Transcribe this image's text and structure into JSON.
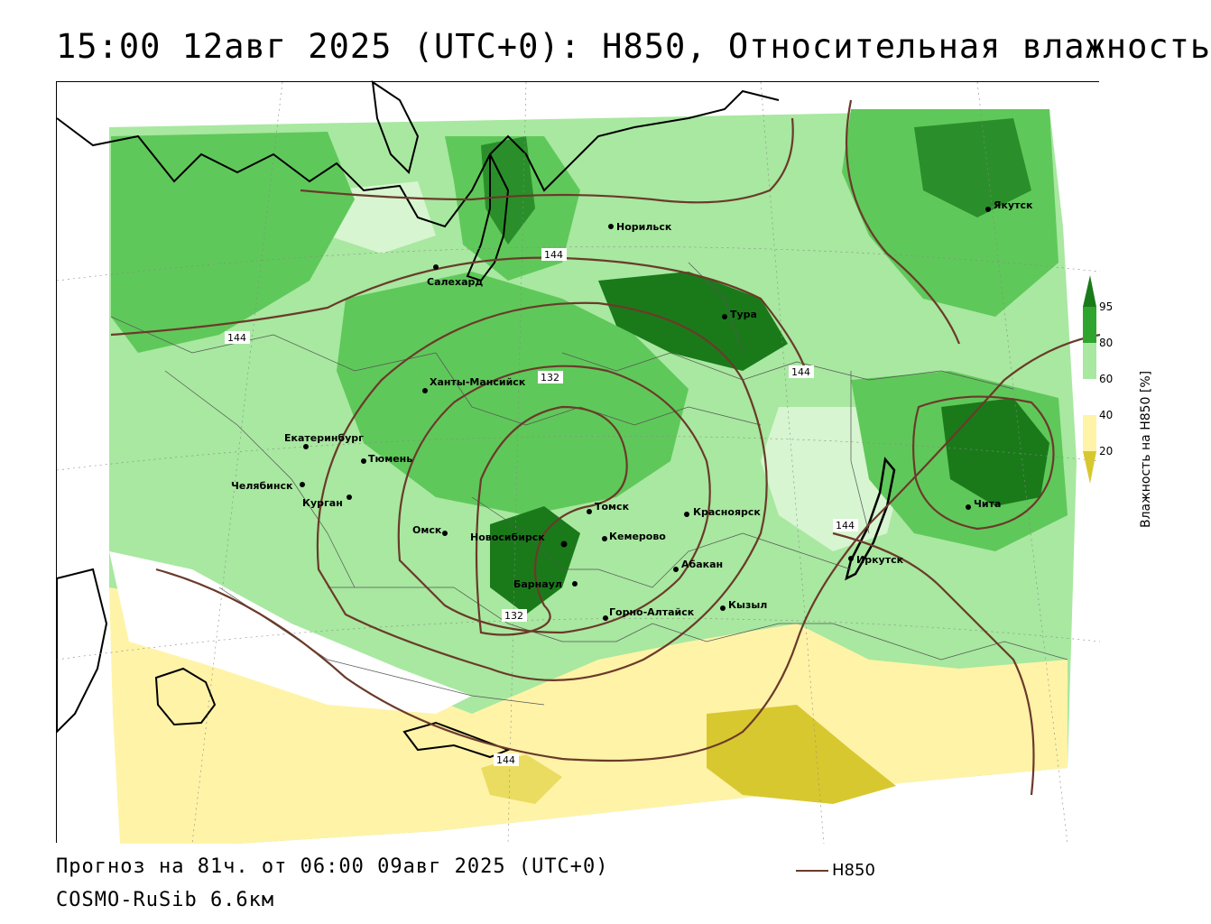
{
  "title": "15:00 12авг 2025 (UTC+0): H850, Относительная влажность",
  "footer": {
    "forecast": "Прогноз на 81ч. от 06:00 09авг 2025 (UTC+0)",
    "model": "COSMO-RuSib 6.6км"
  },
  "line_legend": {
    "label": "H850",
    "color": "#6b3a2a"
  },
  "colorbar": {
    "title": "Влажность на H850 [%]",
    "ticks": [
      "95",
      "80",
      "60",
      "40",
      "20"
    ],
    "colors": {
      "above_95": "#1a7a1a",
      "80_95": "#2fa52f",
      "60_80": "#a8e8a0",
      "40_60": "#ffffff",
      "20_40": "#fff3a8",
      "below_20": "#d8c830"
    }
  },
  "contour_labels": [
    "144",
    "144",
    "144",
    "144",
    "132",
    "132",
    "144"
  ],
  "cities": [
    {
      "name": "Норильск"
    },
    {
      "name": "Якутск"
    },
    {
      "name": "Салехард"
    },
    {
      "name": "Тура"
    },
    {
      "name": "Ханты-Мансийск"
    },
    {
      "name": "Екатеринбург"
    },
    {
      "name": "Тюмень"
    },
    {
      "name": "Челябинск"
    },
    {
      "name": "Курган"
    },
    {
      "name": "Омск"
    },
    {
      "name": "Новосибирск"
    },
    {
      "name": "Томск"
    },
    {
      "name": "Кемерово"
    },
    {
      "name": "Красноярск"
    },
    {
      "name": "Абакан"
    },
    {
      "name": "Барнаул"
    },
    {
      "name": "Горно-Алтайск"
    },
    {
      "name": "Кызыл"
    },
    {
      "name": "Иркутск"
    },
    {
      "name": "Чита"
    }
  ]
}
